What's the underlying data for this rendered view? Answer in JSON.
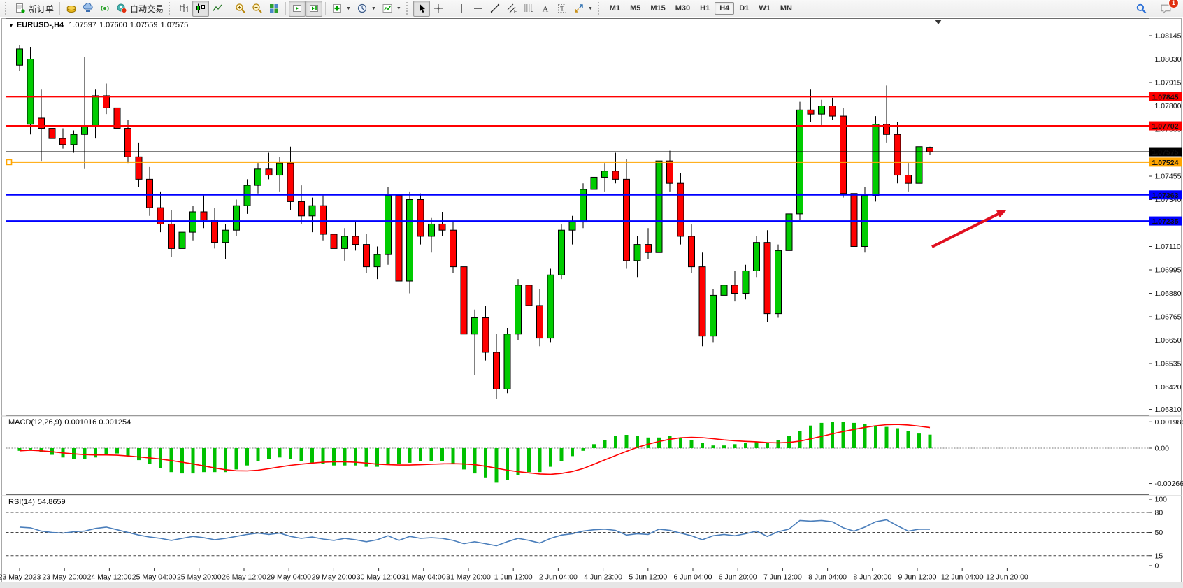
{
  "toolbar": {
    "new_order_label": "新订单",
    "autotrading_label": "自动交易",
    "timeframes": [
      "M1",
      "M5",
      "M15",
      "M30",
      "H1",
      "H4",
      "D1",
      "W1",
      "MN"
    ],
    "active_timeframe": "H4",
    "chat_badge_count": "1",
    "icons": [
      "new-order-icon",
      "market-watch-icon",
      "data-window-icon",
      "signal-icon",
      "autotrading-icon",
      "bar-chart-icon",
      "candlestick-chart-icon",
      "line-chart-icon",
      "zoom-in-icon",
      "zoom-out-icon",
      "tile-windows-icon",
      "auto-scroll-icon",
      "chart-shift-icon",
      "add-indicator-icon",
      "period-icon",
      "template-icon",
      "cursor-icon",
      "crosshair-icon",
      "vertical-line-icon",
      "horizontal-line-icon",
      "trendline-icon",
      "channel-icon",
      "fibonacci-icon",
      "text-icon",
      "label-icon",
      "arrows-icon",
      "search-icon",
      "chat-icon"
    ]
  },
  "chart": {
    "title_symbol": "EURUSD-,H4",
    "quote": {
      "open": "1.07597",
      "high": "1.07600",
      "low": "1.07559",
      "close": "1.07575"
    }
  },
  "indicators": {
    "macd": {
      "label": "MACD(12,26,9)",
      "values_text": "0.001016 0.001254",
      "axis_ticks": [
        "0.001986",
        "0.00",
        "-0.00266"
      ],
      "histogram_color": "#00c000",
      "signal_color": "#ff0000"
    },
    "rsi": {
      "label": "RSI(14)",
      "value_text": "54.8659",
      "axis_ticks": [
        "100",
        "80",
        "50",
        "15",
        "0"
      ],
      "levels": [
        80,
        50,
        15
      ],
      "line_color": "#4a7ebb"
    }
  },
  "chart_data": {
    "type": "candlestick",
    "symbol": "EURUSD-",
    "timeframe": "H4",
    "up_color": "#00cc00",
    "down_color": "#ff0000",
    "price_axis_ticks": [
      "1.08145",
      "1.08030",
      "1.07915",
      "1.07800",
      "1.07685",
      "1.07570",
      "1.07455",
      "1.07340",
      "1.07225",
      "1.07110",
      "1.06995",
      "1.06880",
      "1.06765",
      "1.06650",
      "1.06535",
      "1.06420",
      "1.06310"
    ],
    "time_labels": [
      "23 May 2023",
      "23 May 20:00",
      "24 May 12:00",
      "25 May 04:00",
      "25 May 20:00",
      "26 May 12:00",
      "29 May 04:00",
      "29 May 20:00",
      "30 May 12:00",
      "31 May 04:00",
      "31 May 20:00",
      "1 Jun 12:00",
      "2 Jun 04:00",
      "4 Jun 23:00",
      "5 Jun 12:00",
      "6 Jun 04:00",
      "6 Jun 20:00",
      "7 Jun 12:00",
      "8 Jun 04:00",
      "8 Jun 20:00",
      "9 Jun 12:00",
      "12 Jun 04:00",
      "12 Jun 20:00"
    ],
    "hlines": [
      {
        "price": 1.07845,
        "label": "1.07845",
        "color": "#ff0000",
        "text_color": "#ffffff",
        "width": 2
      },
      {
        "price": 1.07702,
        "label": "1.07702",
        "color": "#ff0000",
        "text_color": "#ffffff",
        "width": 2
      },
      {
        "price": 1.07575,
        "label": "1.07575",
        "color": "#000000",
        "text_color": "#ffffff",
        "width": 1,
        "current": true
      },
      {
        "price": 1.07524,
        "label": "1.07524",
        "color": "#ffa500",
        "text_color": "#000000",
        "width": 2,
        "handle": true
      },
      {
        "price": 1.07363,
        "label": "1.07363",
        "color": "#0000ff",
        "text_color": "#ffffff",
        "width": 2
      },
      {
        "price": 1.07235,
        "label": "1.07235",
        "color": "#0000ff",
        "text_color": "#ffffff",
        "width": 2
      }
    ],
    "annotation_arrow": {
      "from": [
        1333,
        353
      ],
      "to": [
        1440,
        300
      ],
      "color": "#e01020"
    },
    "candles": [
      [
        1.08,
        1.081,
        1.0797,
        1.0808
      ],
      [
        1.0771,
        1.0809,
        1.0766,
        1.0803
      ],
      [
        1.0774,
        1.0788,
        1.0753,
        1.0769
      ],
      [
        1.0769,
        1.0773,
        1.0742,
        1.0764
      ],
      [
        1.0764,
        1.0769,
        1.0759,
        1.0761
      ],
      [
        1.0761,
        1.0768,
        1.0757,
        1.0766
      ],
      [
        1.0766,
        1.0804,
        1.0749,
        1.077
      ],
      [
        1.077,
        1.0788,
        1.0764,
        1.0785
      ],
      [
        1.0785,
        1.0791,
        1.0776,
        1.0779
      ],
      [
        1.0779,
        1.0784,
        1.0766,
        1.0769
      ],
      [
        1.0769,
        1.0773,
        1.0752,
        1.0755
      ],
      [
        1.0755,
        1.0762,
        1.074,
        1.0744
      ],
      [
        1.0744,
        1.075,
        1.0726,
        1.073
      ],
      [
        1.073,
        1.0738,
        1.0718,
        1.0722
      ],
      [
        1.0722,
        1.0729,
        1.0706,
        1.071
      ],
      [
        1.071,
        1.0721,
        1.0702,
        1.0718
      ],
      [
        1.0718,
        1.0731,
        1.0714,
        1.0728
      ],
      [
        1.0728,
        1.0736,
        1.072,
        1.0724
      ],
      [
        1.0724,
        1.073,
        1.071,
        1.0713
      ],
      [
        1.0713,
        1.0722,
        1.0705,
        1.0719
      ],
      [
        1.0719,
        1.0734,
        1.0716,
        1.0731
      ],
      [
        1.0731,
        1.0744,
        1.0727,
        1.0741
      ],
      [
        1.0741,
        1.0752,
        1.0737,
        1.0749
      ],
      [
        1.0749,
        1.0757,
        1.0744,
        1.0746
      ],
      [
        1.0746,
        1.0755,
        1.0738,
        1.0752
      ],
      [
        1.0752,
        1.076,
        1.0729,
        1.0733
      ],
      [
        1.0733,
        1.0741,
        1.0722,
        1.0726
      ],
      [
        1.0726,
        1.0735,
        1.0718,
        1.0731
      ],
      [
        1.0731,
        1.0736,
        1.0714,
        1.0717
      ],
      [
        1.0717,
        1.0724,
        1.0706,
        1.071
      ],
      [
        1.071,
        1.072,
        1.0704,
        1.0716
      ],
      [
        1.0716,
        1.0723,
        1.0709,
        1.0712
      ],
      [
        1.0712,
        1.0717,
        1.0698,
        1.0701
      ],
      [
        1.0701,
        1.0711,
        1.0695,
        1.0707
      ],
      [
        1.0707,
        1.074,
        1.0702,
        1.0736
      ],
      [
        1.0736,
        1.0742,
        1.069,
        1.0694
      ],
      [
        1.0694,
        1.0738,
        1.0688,
        1.0734
      ],
      [
        1.0734,
        1.0737,
        1.0712,
        1.0716
      ],
      [
        1.0716,
        1.0725,
        1.0708,
        1.0722
      ],
      [
        1.0722,
        1.0728,
        1.0716,
        1.0719
      ],
      [
        1.0719,
        1.0723,
        1.0698,
        1.0701
      ],
      [
        1.0701,
        1.0706,
        1.0664,
        1.0668
      ],
      [
        1.0668,
        1.068,
        1.0648,
        1.0676
      ],
      [
        1.0676,
        1.0682,
        1.0655,
        1.0659
      ],
      [
        1.0659,
        1.0668,
        1.0636,
        1.0641
      ],
      [
        1.0641,
        1.0671,
        1.0639,
        1.0668
      ],
      [
        1.0668,
        1.0695,
        1.0665,
        1.0692
      ],
      [
        1.0692,
        1.0698,
        1.0678,
        1.0682
      ],
      [
        1.0682,
        1.069,
        1.0662,
        1.0666
      ],
      [
        1.0666,
        1.07,
        1.0664,
        1.0697
      ],
      [
        1.0697,
        1.0722,
        1.0695,
        1.0719
      ],
      [
        1.0719,
        1.0726,
        1.0712,
        1.0723
      ],
      [
        1.0723,
        1.0742,
        1.072,
        1.0739
      ],
      [
        1.0739,
        1.0748,
        1.0735,
        1.0745
      ],
      [
        1.0745,
        1.0752,
        1.0738,
        1.0748
      ],
      [
        1.0748,
        1.0757,
        1.0742,
        1.0744
      ],
      [
        1.0744,
        1.0754,
        1.07,
        1.0704
      ],
      [
        1.0704,
        1.0716,
        1.0696,
        1.0712
      ],
      [
        1.0712,
        1.072,
        1.0705,
        1.0708
      ],
      [
        1.0708,
        1.0757,
        1.0706,
        1.0753
      ],
      [
        1.0753,
        1.0758,
        1.0738,
        1.0742
      ],
      [
        1.0742,
        1.0747,
        1.0712,
        1.0716
      ],
      [
        1.0716,
        1.0722,
        1.0698,
        1.0701
      ],
      [
        1.0701,
        1.0708,
        1.0662,
        1.0667
      ],
      [
        1.0667,
        1.069,
        1.0664,
        1.0687
      ],
      [
        1.0687,
        1.0696,
        1.068,
        1.0692
      ],
      [
        1.0692,
        1.0699,
        1.0684,
        1.0688
      ],
      [
        1.0688,
        1.0702,
        1.0685,
        1.0699
      ],
      [
        1.0699,
        1.0716,
        1.0696,
        1.0713
      ],
      [
        1.0713,
        1.0719,
        1.0674,
        1.0678
      ],
      [
        1.0678,
        1.0712,
        1.0676,
        1.0709
      ],
      [
        1.0709,
        1.073,
        1.0706,
        1.0727
      ],
      [
        1.0727,
        1.0782,
        1.0724,
        1.0778
      ],
      [
        1.0778,
        1.0788,
        1.0772,
        1.0776
      ],
      [
        1.0776,
        1.0783,
        1.077,
        1.078
      ],
      [
        1.078,
        1.0784,
        1.0773,
        1.0775
      ],
      [
        1.0775,
        1.0779,
        1.0735,
        1.0737
      ],
      [
        1.0737,
        1.0742,
        1.0698,
        1.0711
      ],
      [
        1.0711,
        1.074,
        1.0708,
        1.0736
      ],
      [
        1.0736,
        1.0775,
        1.0733,
        1.0771
      ],
      [
        1.0771,
        1.079,
        1.0762,
        1.0766
      ],
      [
        1.0766,
        1.0772,
        1.0742,
        1.0746
      ],
      [
        1.0746,
        1.0752,
        1.0738,
        1.0742
      ],
      [
        1.0742,
        1.0762,
        1.0738,
        1.076
      ],
      [
        1.07597,
        1.076,
        1.07559,
        1.07575
      ]
    ],
    "macd_histogram": [
      -0.0002,
      -0.0001,
      -0.0003,
      -0.0005,
      -0.0007,
      -0.0008,
      -0.0008,
      -0.0007,
      -0.0005,
      -0.0004,
      -0.0006,
      -0.0009,
      -0.0012,
      -0.0015,
      -0.0018,
      -0.0019,
      -0.0019,
      -0.0018,
      -0.0018,
      -0.0018,
      -0.0016,
      -0.0013,
      -0.001,
      -0.0008,
      -0.0007,
      -0.0008,
      -0.001,
      -0.0011,
      -0.0012,
      -0.0013,
      -0.0013,
      -0.0013,
      -0.0014,
      -0.0014,
      -0.0012,
      -0.0012,
      -0.0011,
      -0.001,
      -0.001,
      -0.001,
      -0.0012,
      -0.0016,
      -0.0019,
      -0.0022,
      -0.0026,
      -0.0024,
      -0.002,
      -0.0018,
      -0.0018,
      -0.0014,
      -0.001,
      -0.0006,
      -0.0002,
      0.0003,
      0.0006,
      0.0009,
      0.001,
      0.0009,
      0.0008,
      0.0008,
      0.0009,
      0.0008,
      0.0006,
      0.0004,
      0.0002,
      0.0002,
      0.0003,
      0.0004,
      0.0005,
      0.0004,
      0.0006,
      0.0009,
      0.0013,
      0.0017,
      0.0019,
      0.00199,
      0.00199,
      0.0019,
      0.0018,
      0.0017,
      0.0016,
      0.0015,
      0.0013,
      0.0011,
      0.001016
    ],
    "rsi_values": [
      58,
      57,
      52,
      50,
      49,
      51,
      52,
      56,
      58,
      54,
      50,
      46,
      43,
      41,
      38,
      41,
      44,
      42,
      39,
      41,
      44,
      47,
      49,
      47,
      49,
      44,
      41,
      43,
      40,
      38,
      41,
      39,
      36,
      39,
      45,
      38,
      44,
      41,
      42,
      41,
      38,
      33,
      36,
      33,
      30,
      36,
      41,
      38,
      34,
      41,
      46,
      48,
      52,
      54,
      55,
      53,
      46,
      48,
      47,
      55,
      53,
      49,
      45,
      39,
      45,
      47,
      45,
      48,
      52,
      44,
      51,
      55,
      68,
      67,
      68,
      66,
      57,
      52,
      58,
      66,
      69,
      60,
      52,
      55,
      54.8659
    ]
  }
}
